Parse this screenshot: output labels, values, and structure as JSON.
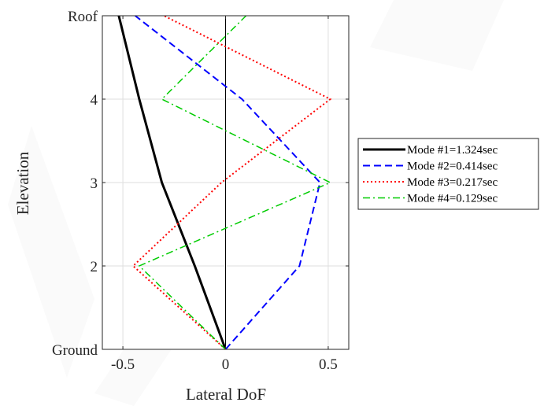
{
  "chart_data": {
    "type": "line",
    "orientation": "horizontal-profile",
    "xlabel": "Lateral DoF",
    "ylabel": "Elevation",
    "xlim": [
      -0.6,
      0.6
    ],
    "ylim": [
      1,
      5
    ],
    "xticks": [
      -0.5,
      0,
      0.5
    ],
    "xtick_labels": [
      "-0.5",
      "0",
      "0.5"
    ],
    "yticks": [
      1,
      2,
      3,
      4,
      5
    ],
    "ytick_labels": [
      "Ground",
      "2",
      "3",
      "4",
      "Roof"
    ],
    "grid": true,
    "zero_line": true,
    "legend_position": "outside-right",
    "series": [
      {
        "name": "Mode #1=1.324sec",
        "color": "#000000",
        "style": "solid",
        "x": [
          0,
          -0.15,
          -0.31,
          -0.42,
          -0.52
        ],
        "y": [
          1,
          2,
          3,
          4,
          5
        ]
      },
      {
        "name": "Mode #2=0.414sec",
        "color": "#0000ff",
        "style": "dashed",
        "x": [
          0,
          0.36,
          0.46,
          0.08,
          -0.44
        ],
        "y": [
          1,
          2,
          3,
          4,
          5
        ]
      },
      {
        "name": "Mode #3=0.217sec",
        "color": "#ff0000",
        "style": "dotted",
        "x": [
          0,
          -0.45,
          -0.02,
          0.51,
          -0.3
        ],
        "y": [
          1,
          2,
          3,
          4,
          5
        ]
      },
      {
        "name": "Mode #4=0.129sec",
        "color": "#00cc00",
        "style": "dashdot",
        "x": [
          0,
          -0.42,
          0.51,
          -0.31,
          0.1
        ],
        "y": [
          1,
          2,
          3,
          4,
          5
        ]
      }
    ]
  }
}
